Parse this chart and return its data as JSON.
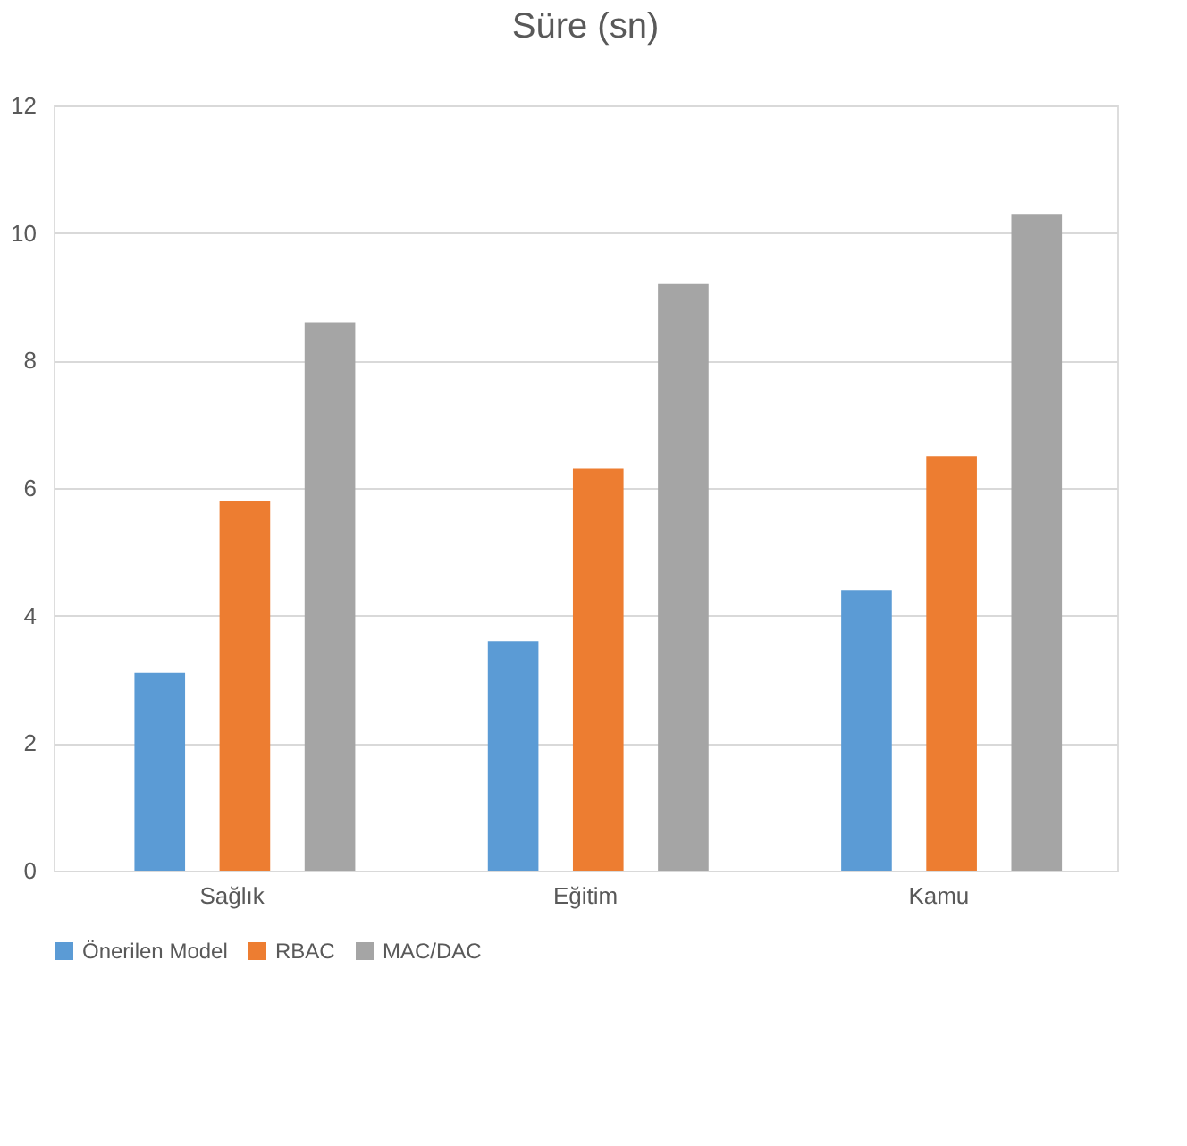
{
  "chart_data": {
    "type": "bar",
    "title": "Süre (sn)",
    "categories": [
      "Sağlık",
      "Eğitim",
      "Kamu"
    ],
    "series": [
      {
        "name": "Önerilen Model",
        "color": "#5b9bd5",
        "values": [
          3.1,
          3.6,
          4.4
        ]
      },
      {
        "name": "RBAC",
        "color": "#ed7d31",
        "values": [
          5.8,
          6.3,
          6.5
        ]
      },
      {
        "name": "MAC/DAC",
        "color": "#a5a5a5",
        "values": [
          8.6,
          9.2,
          10.3
        ]
      }
    ],
    "ylim": [
      0,
      12
    ],
    "yticks": [
      0,
      2,
      4,
      6,
      8,
      10,
      12
    ],
    "grid": "y",
    "legend": "bottom"
  }
}
